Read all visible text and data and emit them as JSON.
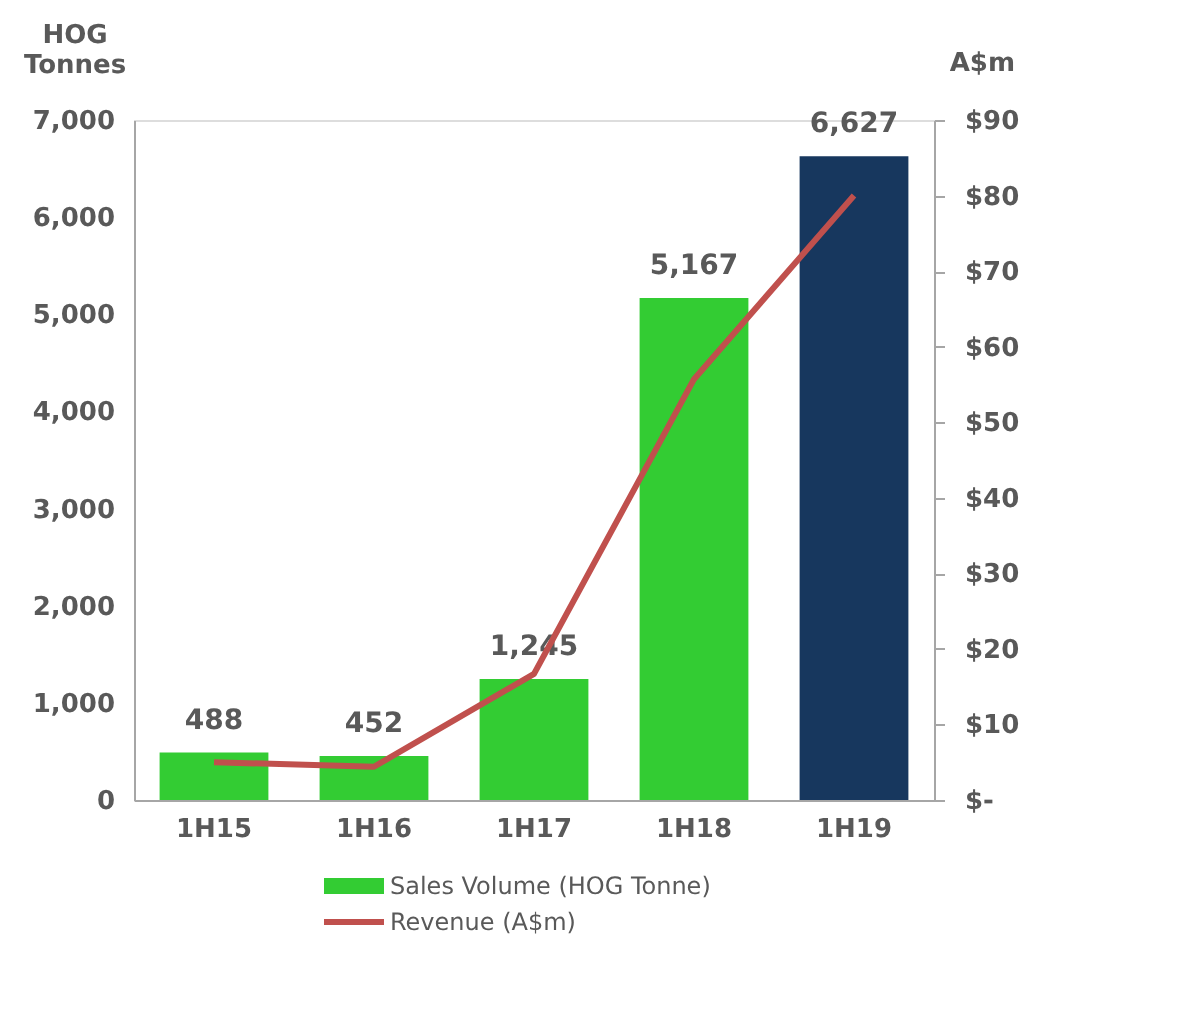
{
  "chart_data": {
    "type": "bar",
    "ylabel": "HOG Tonnes",
    "y2label": "A$m",
    "categories": [
      "1H15",
      "1H16",
      "1H17",
      "1H18",
      "1H19"
    ],
    "series": [
      {
        "name": "Sales Volume (HOG Tonne)",
        "color": "#33cc33",
        "colors": [
          "#33cc33",
          "#33cc33",
          "#33cc33",
          "#33cc33",
          "#17375e"
        ],
        "values": [
          488,
          452,
          1245,
          5167,
          6627
        ],
        "value_labels": [
          "488",
          "452",
          "1,245",
          "5,167",
          "6,627"
        ]
      },
      {
        "name": "Revenue (A$m)",
        "type": "line",
        "axis": "y2",
        "color": "#c0504d",
        "values": [
          5,
          4.4,
          16.7,
          55.7,
          80
        ]
      }
    ],
    "ylim": [
      0,
      7000
    ],
    "yticks": [
      0,
      {
        "value": 1000,
        "label": "1,000"
      },
      {
        "value": 2000,
        "label": "2,000"
      },
      {
        "value": 3000,
        "label": "3,000"
      },
      {
        "value": 4000,
        "label": "4,000"
      },
      {
        "value": 5000,
        "label": "5,000"
      },
      {
        "value": 6000,
        "label": "6,000"
      },
      {
        "value": 7000,
        "label": "7,000"
      }
    ],
    "y2lim": [
      0,
      90
    ],
    "y2ticks": [
      {
        "value": 0,
        "label": "$-"
      },
      {
        "value": 10,
        "label": "$10"
      },
      {
        "value": 20,
        "label": "$20"
      },
      {
        "value": 30,
        "label": "$30"
      },
      {
        "value": 40,
        "label": "$40"
      },
      {
        "value": 50,
        "label": "$50"
      },
      {
        "value": 60,
        "label": "$60"
      },
      {
        "value": 70,
        "label": "$70"
      },
      {
        "value": 80,
        "label": "$80"
      },
      {
        "value": 90,
        "label": "$90"
      }
    ],
    "grid": false,
    "legend": "bottom",
    "line_style": "solid",
    "marker": "none"
  }
}
